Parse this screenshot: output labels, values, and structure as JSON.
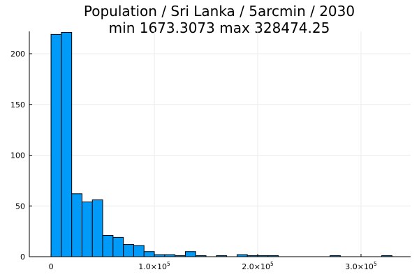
{
  "chart_data": {
    "type": "bar",
    "title": "Population / Sri Lanka / 5arcmin / 2030",
    "subtitle": "min 1673.3073  max 328474.25",
    "xlabel": "",
    "ylabel": "",
    "bar_color": "#009af9",
    "bin_width": 10000,
    "xlim": [
      -21000,
      348000
    ],
    "ylim": [
      0,
      222
    ],
    "grid": true,
    "legend": "none",
    "x_ticks": [
      {
        "value": 0,
        "mantissa": "0",
        "exponent": ""
      },
      {
        "value": 100000,
        "mantissa": "1.0×10",
        "exponent": "5"
      },
      {
        "value": 200000,
        "mantissa": "2.0×10",
        "exponent": "5"
      },
      {
        "value": 300000,
        "mantissa": "3.0×10",
        "exponent": "5"
      }
    ],
    "y_ticks": [
      0,
      50,
      100,
      150,
      200
    ],
    "bins": [
      {
        "x0": 0,
        "x1": 10000,
        "count": 219
      },
      {
        "x0": 10000,
        "x1": 20000,
        "count": 221
      },
      {
        "x0": 20000,
        "x1": 30000,
        "count": 62
      },
      {
        "x0": 30000,
        "x1": 40000,
        "count": 54
      },
      {
        "x0": 40000,
        "x1": 50000,
        "count": 56
      },
      {
        "x0": 50000,
        "x1": 60000,
        "count": 21
      },
      {
        "x0": 60000,
        "x1": 70000,
        "count": 19
      },
      {
        "x0": 70000,
        "x1": 80000,
        "count": 12
      },
      {
        "x0": 80000,
        "x1": 90000,
        "count": 11
      },
      {
        "x0": 90000,
        "x1": 100000,
        "count": 5
      },
      {
        "x0": 100000,
        "x1": 110000,
        "count": 2
      },
      {
        "x0": 110000,
        "x1": 120000,
        "count": 2
      },
      {
        "x0": 120000,
        "x1": 130000,
        "count": 1
      },
      {
        "x0": 130000,
        "x1": 140000,
        "count": 5
      },
      {
        "x0": 140000,
        "x1": 150000,
        "count": 1
      },
      {
        "x0": 160000,
        "x1": 170000,
        "count": 1
      },
      {
        "x0": 180000,
        "x1": 190000,
        "count": 2
      },
      {
        "x0": 190000,
        "x1": 200000,
        "count": 1
      },
      {
        "x0": 200000,
        "x1": 210000,
        "count": 1
      },
      {
        "x0": 210000,
        "x1": 220000,
        "count": 1
      },
      {
        "x0": 270000,
        "x1": 280000,
        "count": 1
      },
      {
        "x0": 320000,
        "x1": 330000,
        "count": 1
      }
    ]
  }
}
